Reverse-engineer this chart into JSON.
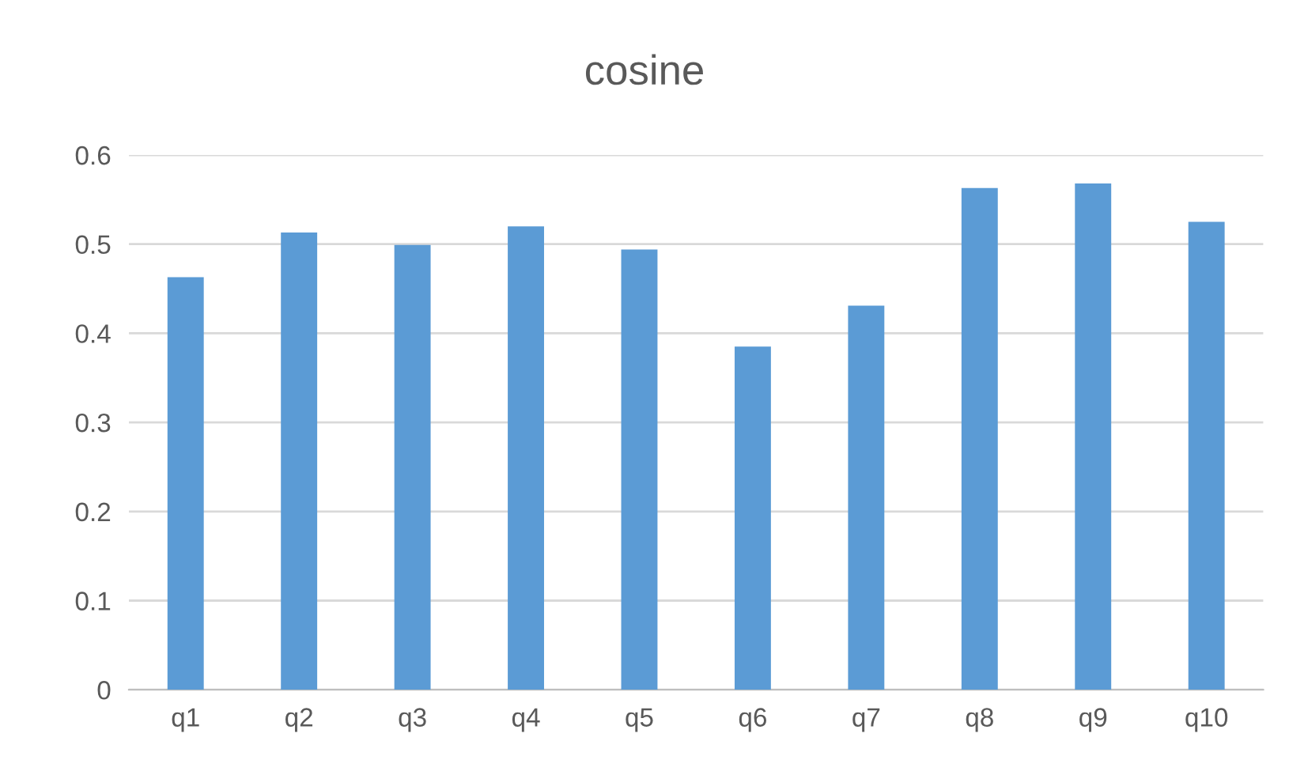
{
  "chart_data": {
    "type": "bar",
    "title": "cosine",
    "categories": [
      "q1",
      "q2",
      "q3",
      "q4",
      "q5",
      "q6",
      "q7",
      "q8",
      "q9",
      "q10"
    ],
    "values": [
      0.463,
      0.513,
      0.499,
      0.52,
      0.494,
      0.385,
      0.431,
      0.563,
      0.568,
      0.525
    ],
    "color": "#5b9bd5",
    "ylim": [
      0,
      0.6
    ],
    "yticks": [
      0,
      0.1,
      0.2,
      0.3,
      0.4,
      0.5,
      0.6
    ],
    "grid": "y",
    "legend": false
  }
}
